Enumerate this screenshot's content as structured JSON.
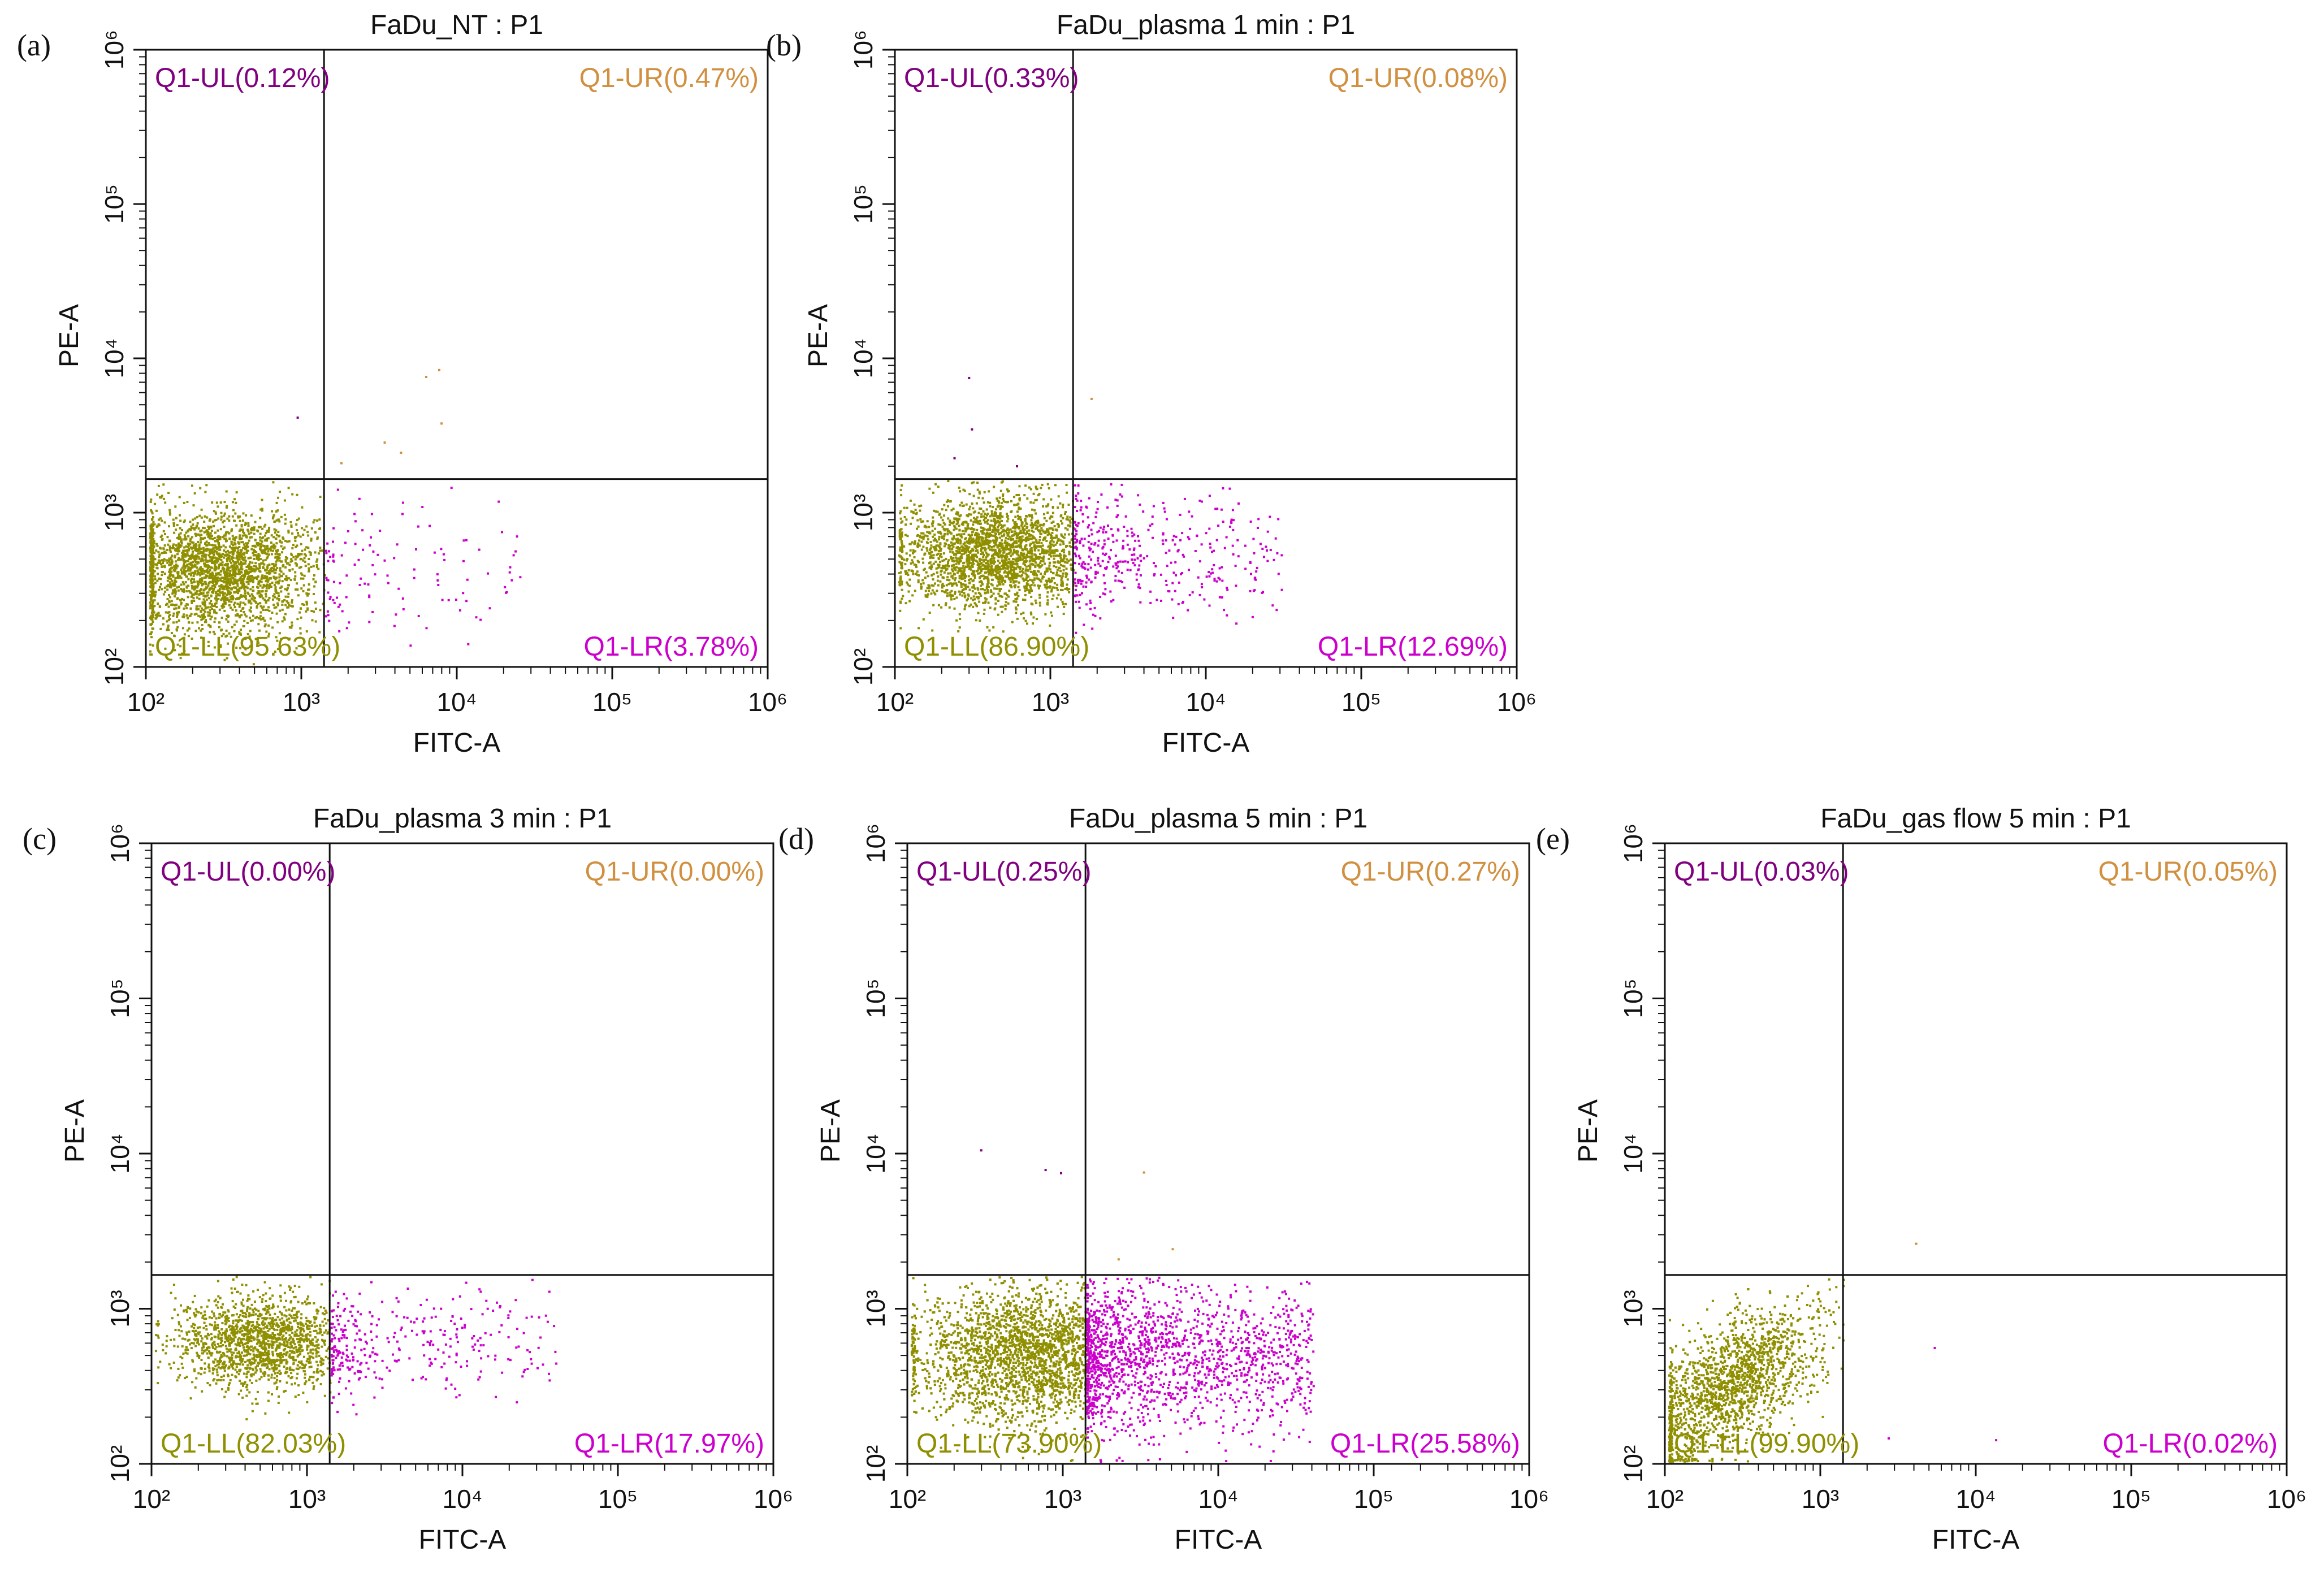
{
  "chart_data": [
    {
      "type": "scatter",
      "panel_label": "(a)",
      "title": "FaDu_NT : P1",
      "xlabel": "FITC-A",
      "ylabel": "PE-A",
      "xscale": "log",
      "yscale": "log",
      "xlim": [
        100,
        1000000
      ],
      "ylim": [
        100,
        1000000
      ],
      "x_tick_labels": [
        "10²",
        "10³",
        "10⁴",
        "10⁵",
        "10⁶"
      ],
      "y_tick_labels": [
        "10²",
        "10³",
        "10⁴",
        "10⁵",
        "10⁶"
      ],
      "gate_x": 1400,
      "gate_y": 1650,
      "quadrants": [
        {
          "name": "Q1-UL",
          "label": "Q1-UL(0.12%)",
          "percent": 0.12,
          "position": "top-left"
        },
        {
          "name": "Q1-UR",
          "label": "Q1-UR(0.47%)",
          "percent": 0.47,
          "position": "top-right"
        },
        {
          "name": "Q1-LL",
          "label": "Q1-LL(95.63%)",
          "percent": 95.63,
          "position": "bottom-left"
        },
        {
          "name": "Q1-LR",
          "label": "Q1-LR(3.78%)",
          "percent": 3.78,
          "position": "bottom-right"
        }
      ],
      "population": {
        "ll_center": [
          300,
          420
        ],
        "ll_spread": [
          0.33,
          0.2
        ],
        "lr_max_x": 25000,
        "ll_density": 2600,
        "lr_density": 120
      }
    },
    {
      "type": "scatter",
      "panel_label": "(b)",
      "title": "FaDu_plasma 1 min : P1",
      "xlabel": "FITC-A",
      "ylabel": "PE-A",
      "xscale": "log",
      "yscale": "log",
      "xlim": [
        100,
        1000000
      ],
      "ylim": [
        100,
        1000000
      ],
      "x_tick_labels": [
        "10²",
        "10³",
        "10⁴",
        "10⁵",
        "10⁶"
      ],
      "y_tick_labels": [
        "10²",
        "10³",
        "10⁴",
        "10⁵",
        "10⁶"
      ],
      "gate_x": 1400,
      "gate_y": 1650,
      "quadrants": [
        {
          "name": "Q1-UL",
          "label": "Q1-UL(0.33%)",
          "percent": 0.33,
          "position": "top-left"
        },
        {
          "name": "Q1-UR",
          "label": "Q1-UR(0.08%)",
          "percent": 0.08,
          "position": "top-right"
        },
        {
          "name": "Q1-LL",
          "label": "Q1-LL(86.90%)",
          "percent": 86.9,
          "position": "bottom-left"
        },
        {
          "name": "Q1-LR",
          "label": "Q1-LR(12.69%)",
          "percent": 12.69,
          "position": "bottom-right"
        }
      ],
      "population": {
        "ll_center": [
          450,
          550
        ],
        "ll_spread": [
          0.32,
          0.18
        ],
        "lr_max_x": 30000,
        "ll_density": 2500,
        "lr_density": 420
      }
    },
    {
      "type": "scatter",
      "panel_label": "(c)",
      "title": "FaDu_plasma 3 min : P1",
      "xlabel": "FITC-A",
      "ylabel": "PE-A",
      "xscale": "log",
      "yscale": "log",
      "xlim": [
        100,
        1000000
      ],
      "ylim": [
        100,
        1000000
      ],
      "x_tick_labels": [
        "10²",
        "10³",
        "10⁴",
        "10⁵",
        "10⁶"
      ],
      "y_tick_labels": [
        "10²",
        "10³",
        "10⁴",
        "10⁵",
        "10⁶"
      ],
      "gate_x": 1400,
      "gate_y": 1650,
      "quadrants": [
        {
          "name": "Q1-UL",
          "label": "Q1-UL(0.00%)",
          "percent": 0.0,
          "position": "top-left"
        },
        {
          "name": "Q1-UR",
          "label": "Q1-UR(0.00%)",
          "percent": 0.0,
          "position": "top-right"
        },
        {
          "name": "Q1-LL",
          "label": "Q1-LL(82.03%)",
          "percent": 82.03,
          "position": "bottom-left"
        },
        {
          "name": "Q1-LR",
          "label": "Q1-LR(17.97%)",
          "percent": 17.97,
          "position": "bottom-right"
        }
      ],
      "population": {
        "ll_center": [
          500,
          620
        ],
        "ll_spread": [
          0.28,
          0.15
        ],
        "lr_max_x": 40000,
        "ll_density": 1600,
        "lr_density": 340
      }
    },
    {
      "type": "scatter",
      "panel_label": "(d)",
      "title": "FaDu_plasma 5 min : P1",
      "xlabel": "FITC-A",
      "ylabel": "PE-A",
      "xscale": "log",
      "yscale": "log",
      "xlim": [
        100,
        1000000
      ],
      "ylim": [
        100,
        1000000
      ],
      "x_tick_labels": [
        "10²",
        "10³",
        "10⁴",
        "10⁵",
        "10⁶"
      ],
      "y_tick_labels": [
        "10²",
        "10³",
        "10⁴",
        "10⁵",
        "10⁶"
      ],
      "gate_x": 1400,
      "gate_y": 1650,
      "quadrants": [
        {
          "name": "Q1-UL",
          "label": "Q1-UL(0.25%)",
          "percent": 0.25,
          "position": "top-left"
        },
        {
          "name": "Q1-UR",
          "label": "Q1-UR(0.27%)",
          "percent": 0.27,
          "position": "top-right"
        },
        {
          "name": "Q1-LL",
          "label": "Q1-LL(73.90%)",
          "percent": 73.9,
          "position": "bottom-left"
        },
        {
          "name": "Q1-LR",
          "label": "Q1-LR(25.58%)",
          "percent": 25.58,
          "position": "bottom-right"
        }
      ],
      "population": {
        "ll_center": [
          650,
          500
        ],
        "ll_spread": [
          0.38,
          0.22
        ],
        "lr_max_x": 40000,
        "ll_density": 4200,
        "lr_density": 1700
      }
    },
    {
      "type": "scatter",
      "panel_label": "(e)",
      "title": "FaDu_gas flow 5 min : P1",
      "xlabel": "FITC-A",
      "ylabel": "PE-A",
      "xscale": "log",
      "yscale": "log",
      "xlim": [
        100,
        1000000
      ],
      "ylim": [
        100,
        1000000
      ],
      "x_tick_labels": [
        "10²",
        "10³",
        "10⁴",
        "10⁵",
        "10⁶"
      ],
      "y_tick_labels": [
        "10²",
        "10³",
        "10⁴",
        "10⁵",
        "10⁶"
      ],
      "gate_x": 1400,
      "gate_y": 1650,
      "quadrants": [
        {
          "name": "Q1-UL",
          "label": "Q1-UL(0.03%)",
          "percent": 0.03,
          "position": "top-left"
        },
        {
          "name": "Q1-UR",
          "label": "Q1-UR(0.05%)",
          "percent": 0.05,
          "position": "top-right"
        },
        {
          "name": "Q1-LL",
          "label": "Q1-LL(99.90%)",
          "percent": 99.9,
          "position": "bottom-left"
        },
        {
          "name": "Q1-LR",
          "label": "Q1-LR(0.02%)",
          "percent": 0.02,
          "position": "bottom-right"
        }
      ],
      "population": {
        "ll_center": [
          260,
          330
        ],
        "ll_spread": [
          0.3,
          0.2
        ],
        "lr_max_x": 20000,
        "ll_density": 2400,
        "lr_density": 3
      }
    }
  ],
  "colors": {
    "ll": "#8f8f00",
    "lr": "#cc00cc",
    "ul": "#800080",
    "ur": "#d09040",
    "axis": "#111111",
    "gate": "#111111"
  }
}
